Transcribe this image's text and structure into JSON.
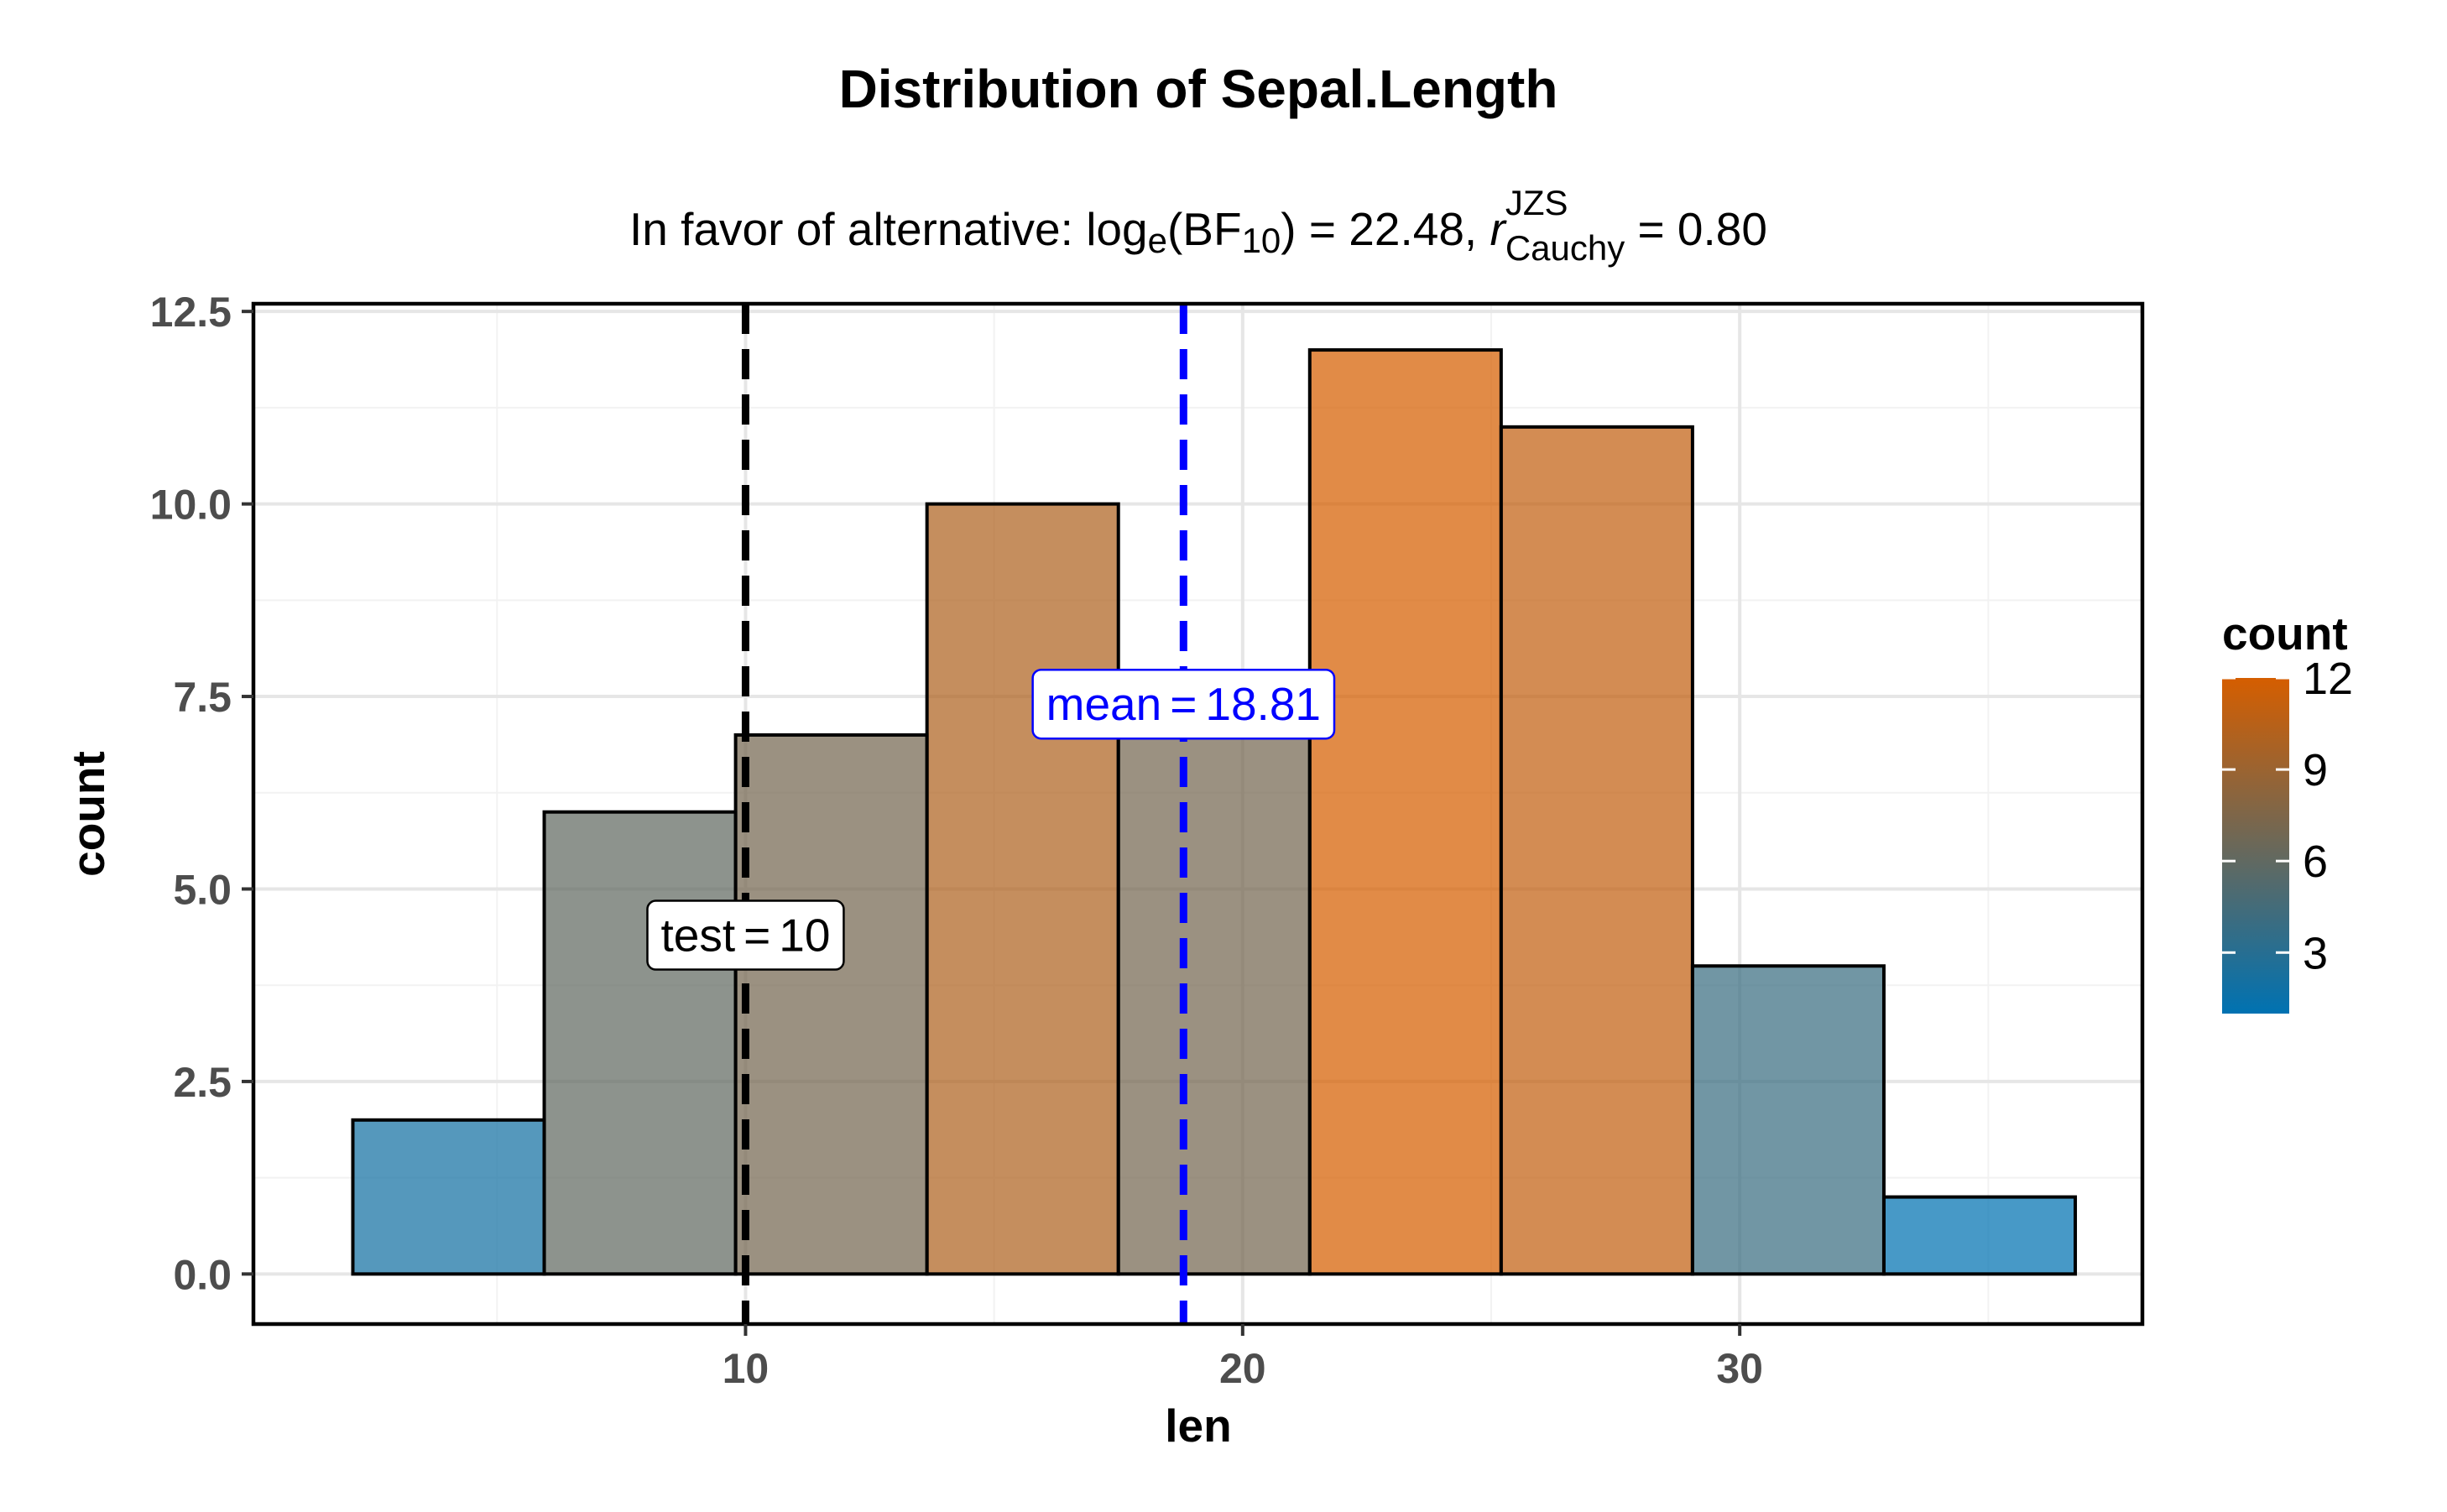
{
  "chart_data": {
    "type": "bar",
    "title": "Distribution of Sepal.Length",
    "subtitle": {
      "prefix": "In favor of alternative: log",
      "log_base": "e",
      "bf_open": "(BF",
      "bf_sub": "10",
      "bf_close": ")",
      "bf_value": " = 22.48, ",
      "r": "r",
      "r_sup": "JZS",
      "r_sub": "Cauchy",
      "r_value": " = 0.80"
    },
    "xlabel": "len",
    "ylabel": "count",
    "xlim": [
      0.1,
      38.1
    ],
    "ylim": [
      -0.65,
      12.6
    ],
    "x_ticks": [
      10,
      20,
      30
    ],
    "x_tick_labels": [
      "10",
      "20",
      "30"
    ],
    "y_ticks": [
      0,
      2.5,
      5,
      7.5,
      10,
      12.5
    ],
    "y_tick_labels": [
      "0.0",
      "2.5",
      "5.0",
      "7.5",
      "10.0",
      "12.5"
    ],
    "x_minor_ticks": [
      5,
      15,
      25,
      35
    ],
    "y_minor_ticks": [
      1.25,
      3.75,
      6.25,
      8.75,
      11.25
    ],
    "grid": true,
    "bars": [
      {
        "x0": 2.1,
        "x1": 5.95,
        "count": 2
      },
      {
        "x0": 5.95,
        "x1": 9.8,
        "count": 6
      },
      {
        "x0": 9.8,
        "x1": 13.65,
        "count": 7
      },
      {
        "x0": 13.65,
        "x1": 17.5,
        "count": 10
      },
      {
        "x0": 17.5,
        "x1": 21.35,
        "count": 7
      },
      {
        "x0": 21.35,
        "x1": 25.2,
        "count": 12
      },
      {
        "x0": 25.2,
        "x1": 29.05,
        "count": 11
      },
      {
        "x0": 29.05,
        "x1": 32.9,
        "count": 4
      },
      {
        "x0": 32.9,
        "x1": 36.75,
        "count": 1
      }
    ],
    "fill_low": "#0072B2",
    "fill_high": "#D55E00",
    "fill_range": [
      1,
      12
    ],
    "reference_lines": [
      {
        "x": 10,
        "color": "#000000",
        "label": "test",
        "eq": "=",
        "value": "10",
        "label_y": 4.4
      },
      {
        "x": 18.81,
        "color": "#0000ff",
        "label": "mean",
        "eq": "=",
        "value": "18.81",
        "label_y": 7.4
      }
    ],
    "legend": {
      "title": "count",
      "position": "right",
      "ticks": [
        3,
        6,
        9,
        12
      ],
      "tick_labels": [
        "3",
        "6",
        "9",
        "12"
      ]
    }
  }
}
